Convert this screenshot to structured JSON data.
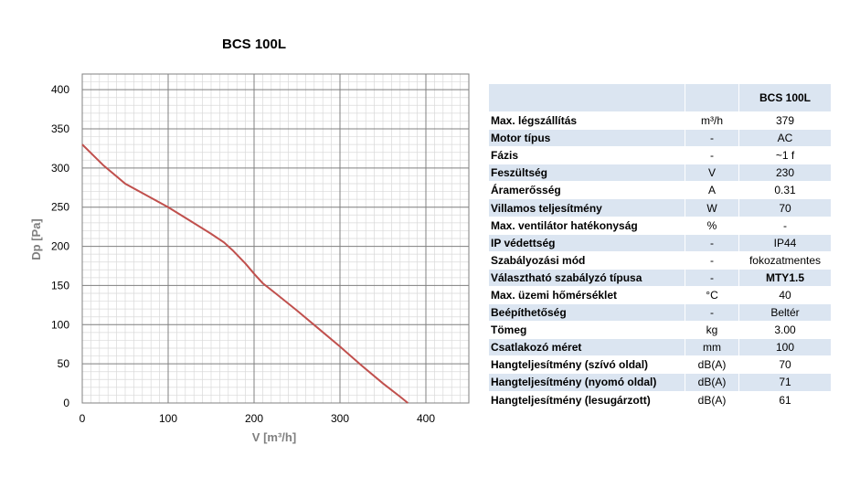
{
  "chart_data": {
    "type": "line",
    "title": "BCS 100L",
    "xlabel": "V [m³/h]",
    "ylabel": "Dp [Pa]",
    "xlim": [
      0,
      450
    ],
    "ylim": [
      0,
      420
    ],
    "xticks": [
      0,
      100,
      200,
      300,
      400
    ],
    "yticks": [
      0,
      50,
      100,
      150,
      200,
      250,
      300,
      350,
      400
    ],
    "grid": true,
    "series_color": "#c0504d",
    "series": [
      {
        "x": [
          0,
          25,
          50,
          75,
          100,
          125,
          150,
          165,
          175,
          190,
          200,
          210,
          225,
          250,
          275,
          300,
          325,
          350,
          370,
          379
        ],
        "y": [
          330,
          303,
          280,
          265,
          250,
          233,
          216,
          205,
          195,
          178,
          165,
          153,
          140,
          118,
          95,
          72,
          48,
          25,
          8,
          0
        ]
      }
    ]
  },
  "table": {
    "header": {
      "label": "",
      "unit": "",
      "value": "BCS 100L"
    },
    "rows": [
      {
        "label": "Max. légszállítás",
        "unit": "m³/h",
        "value": "379"
      },
      {
        "label": "Motor típus",
        "unit": "-",
        "value": "AC"
      },
      {
        "label": "Fázis",
        "unit": "-",
        "value": "~1 f"
      },
      {
        "label": "Feszültség",
        "unit": "V",
        "value": "230"
      },
      {
        "label": "Áramerősség",
        "unit": "A",
        "value": "0.31"
      },
      {
        "label": "Villamos teljesítmény",
        "unit": "W",
        "value": "70"
      },
      {
        "label": "Max. ventilátor hatékonyság",
        "unit": "%",
        "value": "-"
      },
      {
        "label": "IP védettség",
        "unit": "-",
        "value": "IP44"
      },
      {
        "label": "Szabályozási mód",
        "unit": "-",
        "value": "fokozatmentes"
      },
      {
        "label": "Választható szabályzó típusa",
        "unit": "-",
        "value": "MTY1.5"
      },
      {
        "label": "Max. üzemi hőmérséklet",
        "unit": "°C",
        "value": "40"
      },
      {
        "label": "Beépíthetőség",
        "unit": "-",
        "value": "Beltér"
      },
      {
        "label": "Tömeg",
        "unit": "kg",
        "value": "3.00"
      },
      {
        "label": "Csatlakozó méret",
        "unit": "mm",
        "value": "100"
      },
      {
        "label": "Hangteljesítmény (szívó oldal)",
        "unit": "dB(A)",
        "value": "70"
      },
      {
        "label": "Hangteljesítmény (nyomó oldal)",
        "unit": "dB(A)",
        "value": "71"
      },
      {
        "label": "Hangteljesítmény (lesugárzott)",
        "unit": "dB(A)",
        "value": "61"
      }
    ]
  }
}
